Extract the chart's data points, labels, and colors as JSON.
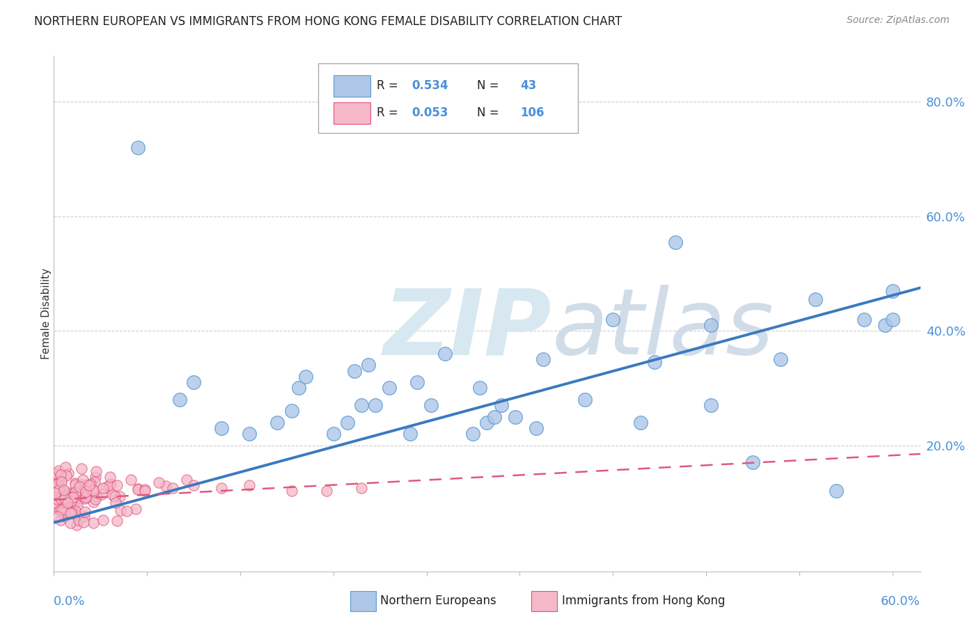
{
  "title": "NORTHERN EUROPEAN VS IMMIGRANTS FROM HONG KONG FEMALE DISABILITY CORRELATION CHART",
  "source": "Source: ZipAtlas.com",
  "ylabel": "Female Disability",
  "ytick_vals": [
    0.2,
    0.4,
    0.6,
    0.8
  ],
  "ytick_labels": [
    "20.0%",
    "40.0%",
    "60.0%",
    "80.0%"
  ],
  "xlim": [
    0.0,
    0.62
  ],
  "ylim": [
    -0.02,
    0.88
  ],
  "blue_color": "#aec6e8",
  "blue_edge": "#5b9bd5",
  "pink_color": "#f4b8c8",
  "pink_edge": "#e05080",
  "line_blue_color": "#3a7abf",
  "line_pink_color": "#e05878",
  "ytick_color": "#4a90d9",
  "xtick_color": "#4a90d9",
  "watermark_zip_color": "#d8e8f0",
  "watermark_atlas_color": "#d0dce8",
  "grid_color": "#cccccc",
  "blue_scatter_x": [
    0.06,
    0.09,
    0.1,
    0.12,
    0.14,
    0.16,
    0.17,
    0.175,
    0.18,
    0.2,
    0.21,
    0.215,
    0.22,
    0.225,
    0.23,
    0.24,
    0.255,
    0.26,
    0.27,
    0.28,
    0.3,
    0.305,
    0.31,
    0.315,
    0.32,
    0.33,
    0.345,
    0.35,
    0.38,
    0.4,
    0.42,
    0.43,
    0.445,
    0.47,
    0.5,
    0.52,
    0.545,
    0.56,
    0.58,
    0.595,
    0.6,
    0.47,
    0.6
  ],
  "blue_scatter_y": [
    0.72,
    0.28,
    0.31,
    0.23,
    0.22,
    0.24,
    0.26,
    0.3,
    0.32,
    0.22,
    0.24,
    0.33,
    0.27,
    0.34,
    0.27,
    0.3,
    0.22,
    0.31,
    0.27,
    0.36,
    0.22,
    0.3,
    0.24,
    0.25,
    0.27,
    0.25,
    0.23,
    0.35,
    0.28,
    0.42,
    0.24,
    0.345,
    0.555,
    0.27,
    0.17,
    0.35,
    0.455,
    0.12,
    0.42,
    0.41,
    0.42,
    0.41,
    0.47
  ],
  "blue_line_x": [
    0.0,
    0.62
  ],
  "blue_line_y": [
    0.065,
    0.475
  ],
  "pink_line_x": [
    0.0,
    0.62
  ],
  "pink_line_y": [
    0.105,
    0.185
  ],
  "background_color": "#ffffff"
}
